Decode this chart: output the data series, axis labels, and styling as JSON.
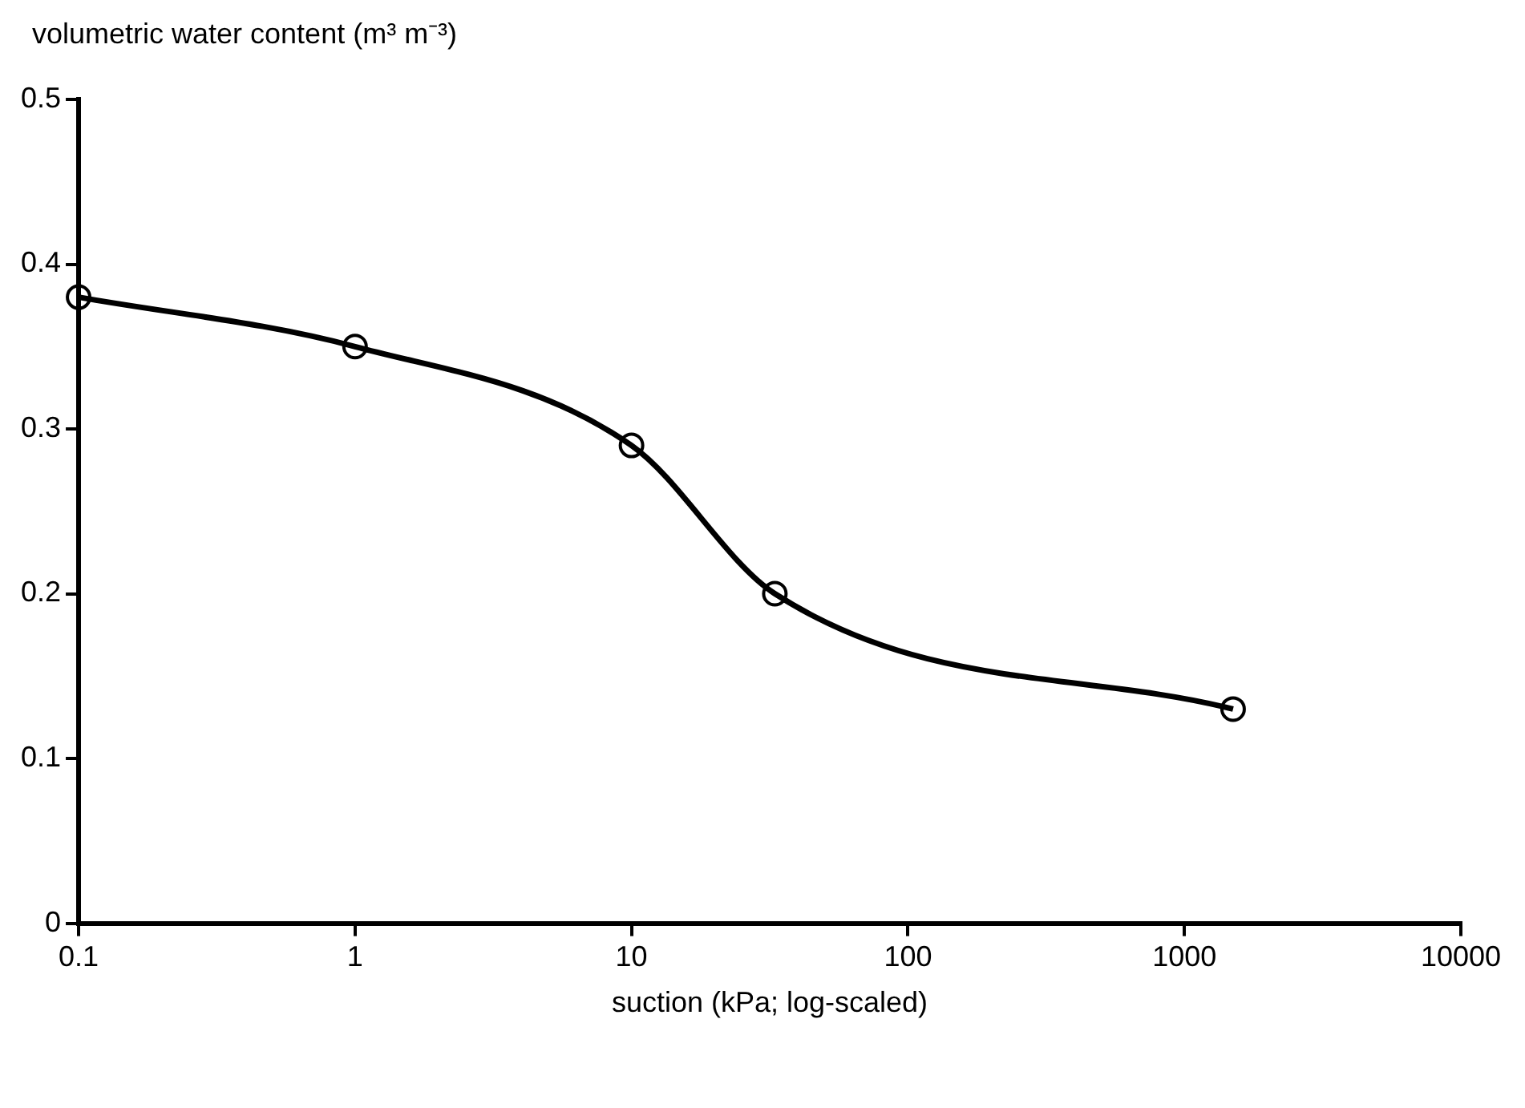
{
  "chart_data": {
    "type": "line",
    "ylabel": "volumetric water content (m³ m⁻³)",
    "xlabel": "suction (kPa; log-scaled)",
    "x": [
      0.1,
      1,
      10,
      33,
      1500
    ],
    "series": [
      {
        "color": "#000000",
        "values": [
          0.38,
          0.35,
          0.29,
          0.2,
          0.13
        ]
      }
    ],
    "log": "x",
    "xlim": [
      0.1,
      10000
    ],
    "xticks": [
      0.1,
      1,
      10,
      100,
      1000,
      10000
    ],
    "ylim": [
      0,
      0.5
    ],
    "yticks": [
      0,
      0.1,
      0.2,
      0.3,
      0.4,
      0.5
    ],
    "grid": false,
    "legend": false,
    "marker": "circle",
    "line_style": "solid"
  }
}
